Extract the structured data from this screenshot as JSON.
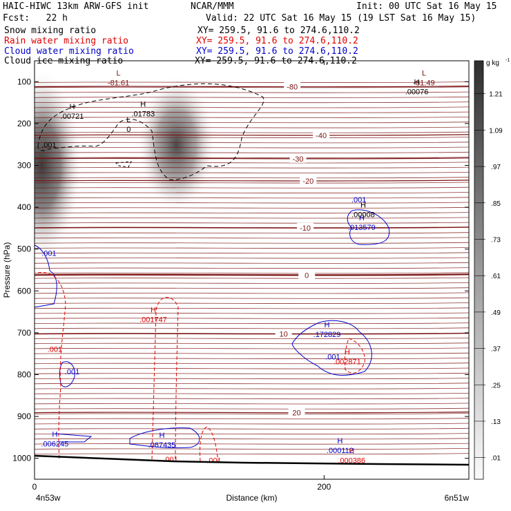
{
  "header": {
    "model": "HAIC-HIWC 13km ARW-GFS init",
    "center": "NCAR/MMM",
    "init": "Init: 00 UTC Sat 16 May 15",
    "fcst": "Fcst:   22 h",
    "valid": "Valid: 22 UTC Sat 16 May 15 (19 LST Sat 16 May 15)",
    "fields": [
      {
        "name": "Snow mixing ratio",
        "xy": "XY= 259.5, 91.6 to 274.6,110.2",
        "color": "#000000"
      },
      {
        "name": "Rain water mixing ratio",
        "xy": "XY= 259.5, 91.6 to 274.6,110.2",
        "color": "#e00000"
      },
      {
        "name": "Cloud water mixing ratio",
        "xy": "XY= 259.5, 91.6 to 274.6,110.2",
        "color": "#0000cc"
      },
      {
        "name": "Cloud ice mixing ratio",
        "xy": "XY= 259.5, 91.6 to 274.6,110.2",
        "color": "#000000"
      }
    ]
  },
  "chart_data": {
    "type": "heatmap",
    "xlabel": "Distance (km)",
    "ylabel": "Pressure (hPa)",
    "xlim": [
      0,
      300
    ],
    "ylim": [
      1050,
      50
    ],
    "x_ticks": [
      {
        "value": 0,
        "label": "0"
      },
      {
        "value": 200,
        "label": "200"
      }
    ],
    "x_end_labels": {
      "left": "4n53w",
      "right": "6n51w"
    },
    "y_ticks": [
      100,
      200,
      300,
      400,
      500,
      600,
      700,
      800,
      900,
      1000
    ],
    "colorbar": {
      "unit": "g kg",
      "unit_exp": "-1",
      "levels": [
        "1.21",
        "1.09",
        ".97",
        ".85",
        ".73",
        ".61",
        ".49",
        ".37",
        ".25",
        ".13",
        ".01"
      ]
    },
    "snow_shading": [
      {
        "x": 5,
        "p": 300,
        "max": 1.15
      },
      {
        "x": 98,
        "p": 250,
        "max": 1.1
      }
    ],
    "temperature_contours": {
      "color": "#7a1010",
      "levels": [
        {
          "label": "-80",
          "p": 112,
          "x_label": 178
        },
        {
          "label": "-40",
          "p": 228,
          "x_label": 198
        },
        {
          "label": "-30",
          "p": 284,
          "x_label": 182
        },
        {
          "label": "-20",
          "p": 337,
          "x_label": 189
        },
        {
          "label": "-10",
          "p": 449,
          "x_label": 187
        },
        {
          "label": "0",
          "p": 562,
          "x_label": 188
        },
        {
          "label": "10",
          "p": 703,
          "x_label": 172
        },
        {
          "label": "20",
          "p": 891,
          "x_label": 181
        }
      ]
    },
    "extrema_labels": [
      {
        "kind": "L",
        "text": "-81.61",
        "x": 58,
        "p": 104,
        "color": "#7a1010"
      },
      {
        "kind": "L",
        "text": "-81.49",
        "x": 269,
        "p": 104,
        "color": "#7a1010"
      },
      {
        "kind": "H",
        "text": ".00721",
        "x": 26,
        "p": 184,
        "color": "#000000"
      },
      {
        "kind": "H",
        "text": ".01783",
        "x": 75,
        "p": 178,
        "color": "#000000"
      },
      {
        "kind": "H",
        "text": ".00076",
        "x": 264,
        "p": 125,
        "color": "#000000"
      },
      {
        "kind": "L",
        "text": "0",
        "x": 65,
        "p": 215,
        "color": "#000000"
      },
      {
        "kind": "",
        "text": ".001",
        "x": 10,
        "p": 252,
        "color": "#000000"
      },
      {
        "kind": "H",
        "text": ".00008",
        "x": 227,
        "p": 419,
        "color": "#000000"
      },
      {
        "kind": "",
        "text": ".001",
        "x": 224,
        "p": 383,
        "color": "#0000cc"
      },
      {
        "kind": "H",
        "text": ".013579",
        "x": 226,
        "p": 449,
        "color": "#0000cc"
      },
      {
        "kind": "",
        "text": ".001",
        "x": 10,
        "p": 511,
        "color": "#0000cc"
      },
      {
        "kind": "H",
        "text": ".001747",
        "x": 82,
        "p": 670,
        "color": "#e00000"
      },
      {
        "kind": "",
        "text": ".001",
        "x": 14,
        "p": 741,
        "color": "#e00000"
      },
      {
        "kind": "H",
        "text": ".172829",
        "x": 202,
        "p": 705,
        "color": "#0000cc"
      },
      {
        "kind": "",
        "text": ".001",
        "x": 206,
        "p": 759,
        "color": "#0000cc"
      },
      {
        "kind": "H",
        "text": ".002871",
        "x": 216,
        "p": 770,
        "color": "#e00000"
      },
      {
        "kind": "",
        "text": ".001",
        "x": 26,
        "p": 794,
        "color": "#0000cc"
      },
      {
        "kind": "H",
        "text": ".006245",
        "x": 14,
        "p": 967,
        "color": "#0000cc"
      },
      {
        "kind": "H",
        "text": ".067435",
        "x": 88,
        "p": 969,
        "color": "#0000cc"
      },
      {
        "kind": "H",
        "text": ".000112",
        "x": 211,
        "p": 982,
        "color": "#0000cc"
      },
      {
        "kind": "H",
        "text": ".000386",
        "x": 219,
        "p": 1006,
        "color": "#e00000"
      },
      {
        "kind": "",
        "text": ".001",
        "x": 94,
        "p": 1004,
        "color": "#e00000"
      },
      {
        "kind": "",
        "text": ".001",
        "x": 124,
        "p": 1006,
        "color": "#e00000"
      }
    ]
  }
}
